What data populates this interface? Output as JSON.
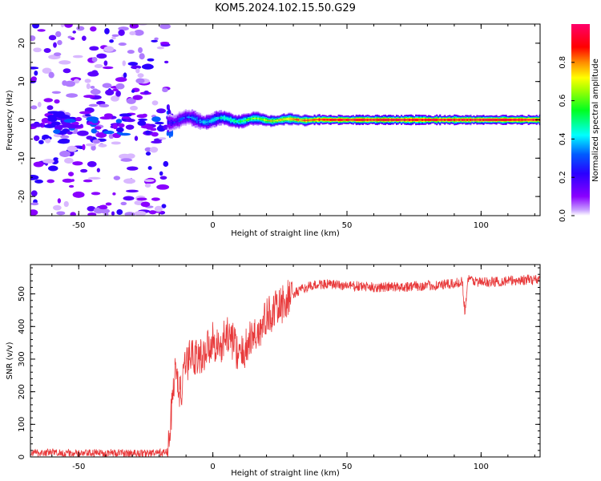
{
  "title": "KOM5.2024.102.15.50.G29",
  "chart_data": [
    {
      "type": "heatmap",
      "xlabel": "Height of straight line (km)",
      "ylabel": "Frequency (Hz)",
      "xlim": [
        -68,
        122
      ],
      "ylim": [
        -25,
        25
      ],
      "xticks": [
        -50,
        0,
        50,
        100
      ],
      "yticks": [
        -20,
        -10,
        0,
        10,
        20
      ],
      "colorbar": {
        "label": "Normalized spectral amplitude",
        "ticks": [
          "0.0",
          "0.2",
          "0.4",
          "0.6",
          "0.8"
        ],
        "range": [
          0,
          1
        ],
        "colormap": "gist_rainbow (violet → blue → cyan → green → yellow → orange → red → pink)"
      },
      "grid": false,
      "description_data": {
        "signal_band_center_hz": 0,
        "signal_onset_km": -17,
        "noise_region_km": [
          -68,
          -17
        ],
        "noise_frequency_spread_hz": [
          -25,
          25
        ],
        "strong_signal_from_km": 45
      }
    },
    {
      "type": "line",
      "xlabel": "Height of straight line (km)",
      "ylabel": "SNR (v/v)",
      "xlim": [
        -68,
        122
      ],
      "ylim": [
        0,
        590
      ],
      "xticks": [
        -50,
        0,
        50,
        100
      ],
      "yticks": [
        0,
        100,
        200,
        300,
        400,
        500
      ],
      "grid": false,
      "series": [
        {
          "color": "#e8393a",
          "x": [
            -68,
            -60,
            -50,
            -40,
            -30,
            -20,
            -17,
            -16,
            -15,
            -14,
            -13,
            -12,
            -10,
            -8,
            -5,
            0,
            3,
            5,
            8,
            10,
            12,
            14,
            15,
            18,
            20,
            25,
            30,
            35,
            40,
            50,
            60,
            70,
            80,
            90,
            93,
            94,
            95,
            100,
            110,
            122
          ],
          "y": [
            12,
            14,
            10,
            13,
            11,
            12,
            15,
            60,
            200,
            260,
            230,
            190,
            280,
            320,
            300,
            360,
            330,
            380,
            350,
            300,
            330,
            360,
            370,
            390,
            430,
            460,
            500,
            520,
            530,
            525,
            520,
            522,
            525,
            530,
            540,
            440,
            545,
            535,
            540,
            545
          ]
        }
      ]
    }
  ]
}
